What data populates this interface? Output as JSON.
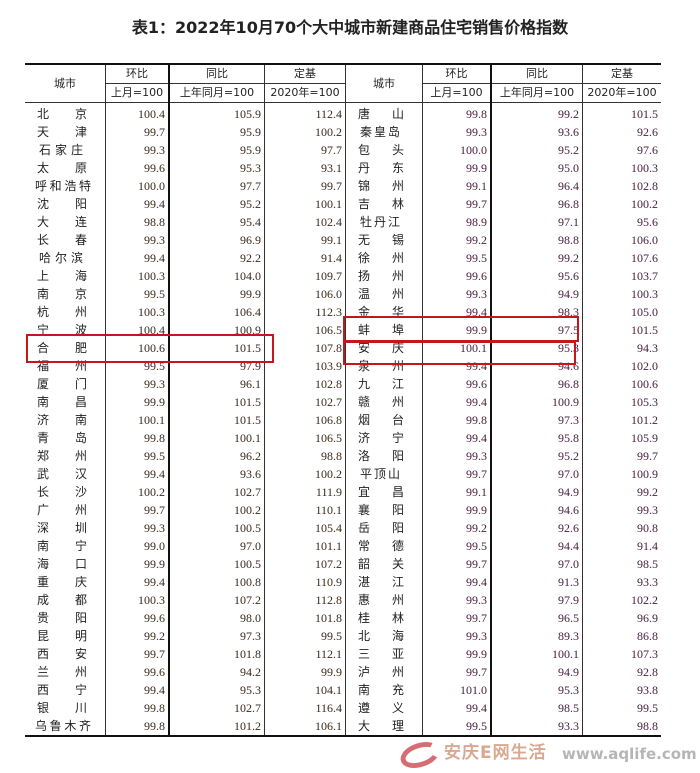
{
  "title": "表1：2022年10月70个大中城市新建商品住宅销售价格指数",
  "headers": {
    "city": "城市",
    "mom": "环比",
    "yoy": "同比",
    "base": "定基",
    "mom_sub": "上月=100",
    "yoy_sub": "上年同月=100",
    "base_sub": "2020年=100"
  },
  "left_rows": [
    [
      "北京",
      "100.4",
      "105.9",
      "112.4"
    ],
    [
      "天津",
      "99.7",
      "95.9",
      "100.2"
    ],
    [
      "石家庄",
      "99.3",
      "95.9",
      "97.7"
    ],
    [
      "太原",
      "99.6",
      "95.3",
      "93.1"
    ],
    [
      "呼和浩特",
      "100.0",
      "97.7",
      "99.7"
    ],
    [
      "沈阳",
      "99.4",
      "95.2",
      "100.1"
    ],
    [
      "大连",
      "98.8",
      "95.4",
      "102.4"
    ],
    [
      "长春",
      "99.3",
      "96.9",
      "99.1"
    ],
    [
      "哈尔滨",
      "99.4",
      "92.2",
      "91.4"
    ],
    [
      "上海",
      "100.3",
      "104.0",
      "109.7"
    ],
    [
      "南京",
      "99.5",
      "99.9",
      "106.0"
    ],
    [
      "杭州",
      "100.3",
      "106.4",
      "112.3"
    ],
    [
      "宁波",
      "100.4",
      "100.9",
      "106.5"
    ],
    [
      "合肥",
      "100.6",
      "101.5",
      "107.8"
    ],
    [
      "福州",
      "99.5",
      "97.9",
      "103.9"
    ],
    [
      "厦门",
      "99.3",
      "96.1",
      "102.8"
    ],
    [
      "南昌",
      "99.9",
      "101.5",
      "102.7"
    ],
    [
      "济南",
      "100.1",
      "101.5",
      "106.8"
    ],
    [
      "青岛",
      "99.8",
      "100.1",
      "106.5"
    ],
    [
      "郑州",
      "99.5",
      "96.2",
      "98.8"
    ],
    [
      "武汉",
      "99.4",
      "93.6",
      "100.2"
    ],
    [
      "长沙",
      "100.2",
      "102.7",
      "111.9"
    ],
    [
      "广州",
      "99.7",
      "100.2",
      "110.1"
    ],
    [
      "深圳",
      "99.3",
      "100.5",
      "105.4"
    ],
    [
      "南宁",
      "99.0",
      "97.0",
      "101.1"
    ],
    [
      "海口",
      "99.9",
      "100.5",
      "107.2"
    ],
    [
      "重庆",
      "99.4",
      "100.8",
      "110.9"
    ],
    [
      "成都",
      "100.3",
      "107.2",
      "112.8"
    ],
    [
      "贵阳",
      "99.6",
      "98.0",
      "101.8"
    ],
    [
      "昆明",
      "99.2",
      "97.3",
      "99.5"
    ],
    [
      "西安",
      "99.7",
      "101.8",
      "112.1"
    ],
    [
      "兰州",
      "99.6",
      "94.2",
      "99.9"
    ],
    [
      "西宁",
      "99.4",
      "95.3",
      "104.1"
    ],
    [
      "银川",
      "99.8",
      "102.7",
      "116.4"
    ],
    [
      "乌鲁木齐",
      "99.8",
      "101.2",
      "106.1"
    ]
  ],
  "right_rows": [
    [
      "唐山",
      "99.8",
      "99.2",
      "101.5"
    ],
    [
      "秦皇岛",
      "99.3",
      "93.6",
      "92.6"
    ],
    [
      "包头",
      "100.0",
      "95.2",
      "97.6"
    ],
    [
      "丹东",
      "99.9",
      "95.0",
      "100.3"
    ],
    [
      "锦州",
      "99.1",
      "96.4",
      "102.8"
    ],
    [
      "吉林",
      "99.7",
      "96.8",
      "100.2"
    ],
    [
      "牡丹江",
      "98.9",
      "97.1",
      "95.6"
    ],
    [
      "无锡",
      "99.2",
      "98.8",
      "106.0"
    ],
    [
      "徐州",
      "99.5",
      "99.2",
      "107.6"
    ],
    [
      "扬州",
      "99.6",
      "95.6",
      "103.7"
    ],
    [
      "温州",
      "99.3",
      "94.9",
      "100.3"
    ],
    [
      "金华",
      "99.4",
      "98.3",
      "105.0"
    ],
    [
      "蚌埠",
      "99.9",
      "97.5",
      "101.5"
    ],
    [
      "安庆",
      "100.1",
      "95.3",
      "94.3"
    ],
    [
      "泉州",
      "99.4",
      "94.6",
      "102.0"
    ],
    [
      "九江",
      "99.6",
      "96.8",
      "100.6"
    ],
    [
      "赣州",
      "99.4",
      "100.9",
      "105.3"
    ],
    [
      "烟台",
      "99.8",
      "97.3",
      "101.2"
    ],
    [
      "济宁",
      "99.4",
      "95.8",
      "105.9"
    ],
    [
      "洛阳",
      "99.3",
      "95.2",
      "99.7"
    ],
    [
      "平顶山",
      "99.7",
      "97.0",
      "100.9"
    ],
    [
      "宜昌",
      "99.1",
      "94.9",
      "99.2"
    ],
    [
      "襄阳",
      "99.9",
      "94.6",
      "99.3"
    ],
    [
      "岳阳",
      "99.2",
      "92.6",
      "90.8"
    ],
    [
      "常德",
      "99.5",
      "94.4",
      "91.4"
    ],
    [
      "韶关",
      "99.7",
      "97.0",
      "98.5"
    ],
    [
      "湛江",
      "99.4",
      "91.3",
      "93.3"
    ],
    [
      "惠州",
      "99.3",
      "97.9",
      "102.2"
    ],
    [
      "桂林",
      "99.7",
      "96.5",
      "96.9"
    ],
    [
      "北海",
      "99.3",
      "89.3",
      "86.8"
    ],
    [
      "三亚",
      "99.9",
      "100.1",
      "107.3"
    ],
    [
      "泸州",
      "99.7",
      "94.9",
      "92.8"
    ],
    [
      "南充",
      "101.0",
      "95.3",
      "93.8"
    ],
    [
      "遵义",
      "99.4",
      "98.5",
      "99.5"
    ],
    [
      "大理",
      "99.5",
      "93.3",
      "98.8"
    ]
  ],
  "highlighted_cities": [
    "合肥",
    "蚌埠",
    "安庆"
  ],
  "highlight_color": "#c4161c",
  "watermark": {
    "logo_text": "安庆E网生活",
    "url": "www.aqlife.com"
  }
}
